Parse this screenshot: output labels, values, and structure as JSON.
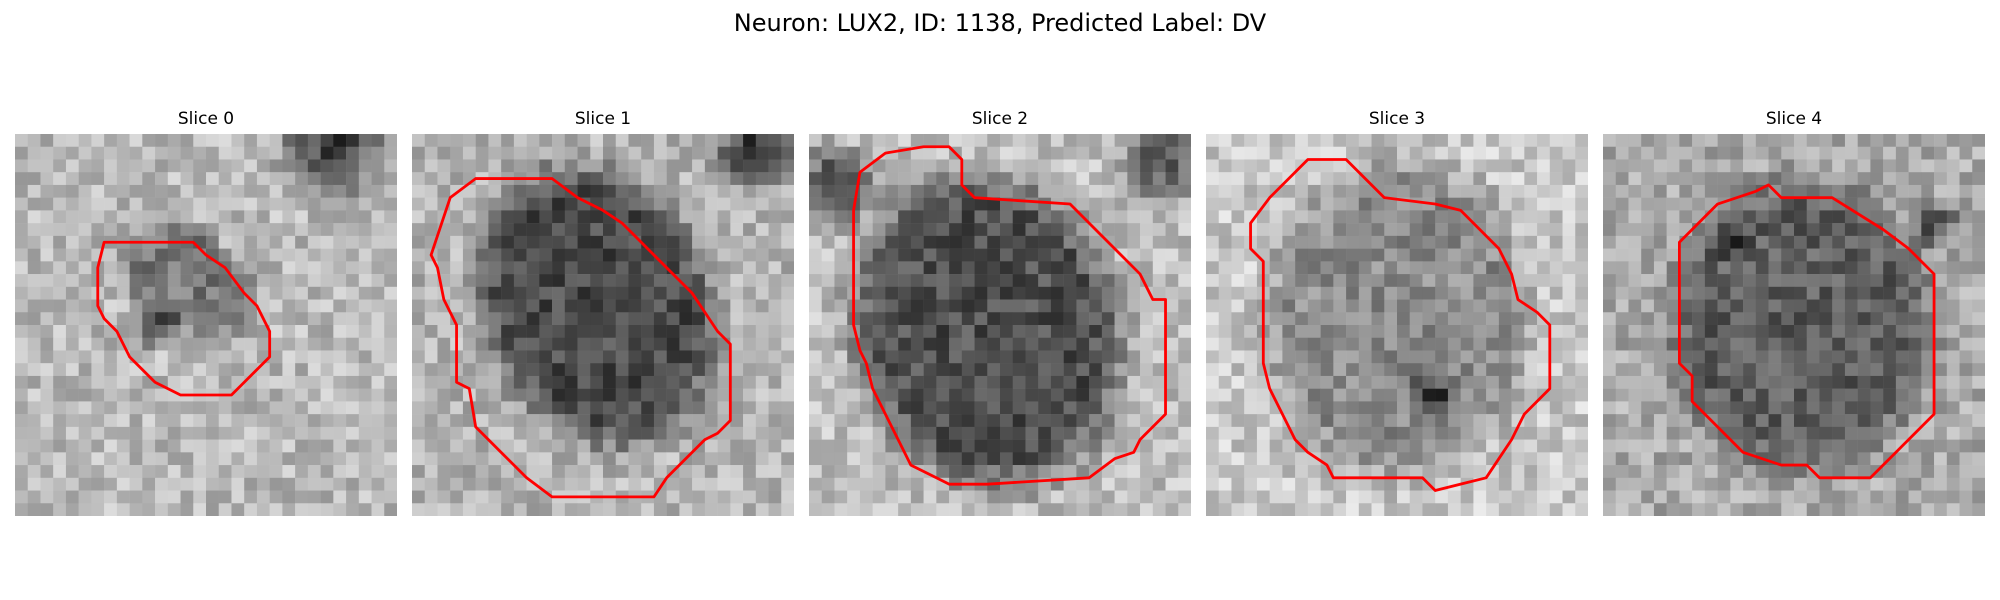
{
  "figure": {
    "title": "Neuron: LUX2, ID: 1138, Predicted Label: DV"
  },
  "contour_color": "#ff0000",
  "slices": [
    {
      "title": "Slice 0",
      "image": "grayscale-microscopy-patch",
      "contour": "red-cell-outline"
    },
    {
      "title": "Slice 1",
      "image": "grayscale-microscopy-patch",
      "contour": "red-cell-outline"
    },
    {
      "title": "Slice 2",
      "image": "grayscale-microscopy-patch",
      "contour": "red-cell-outline"
    },
    {
      "title": "Slice 3",
      "image": "grayscale-microscopy-patch",
      "contour": "red-cell-outline"
    },
    {
      "title": "Slice 4",
      "image": "grayscale-microscopy-patch",
      "contour": "red-cell-outline"
    }
  ]
}
